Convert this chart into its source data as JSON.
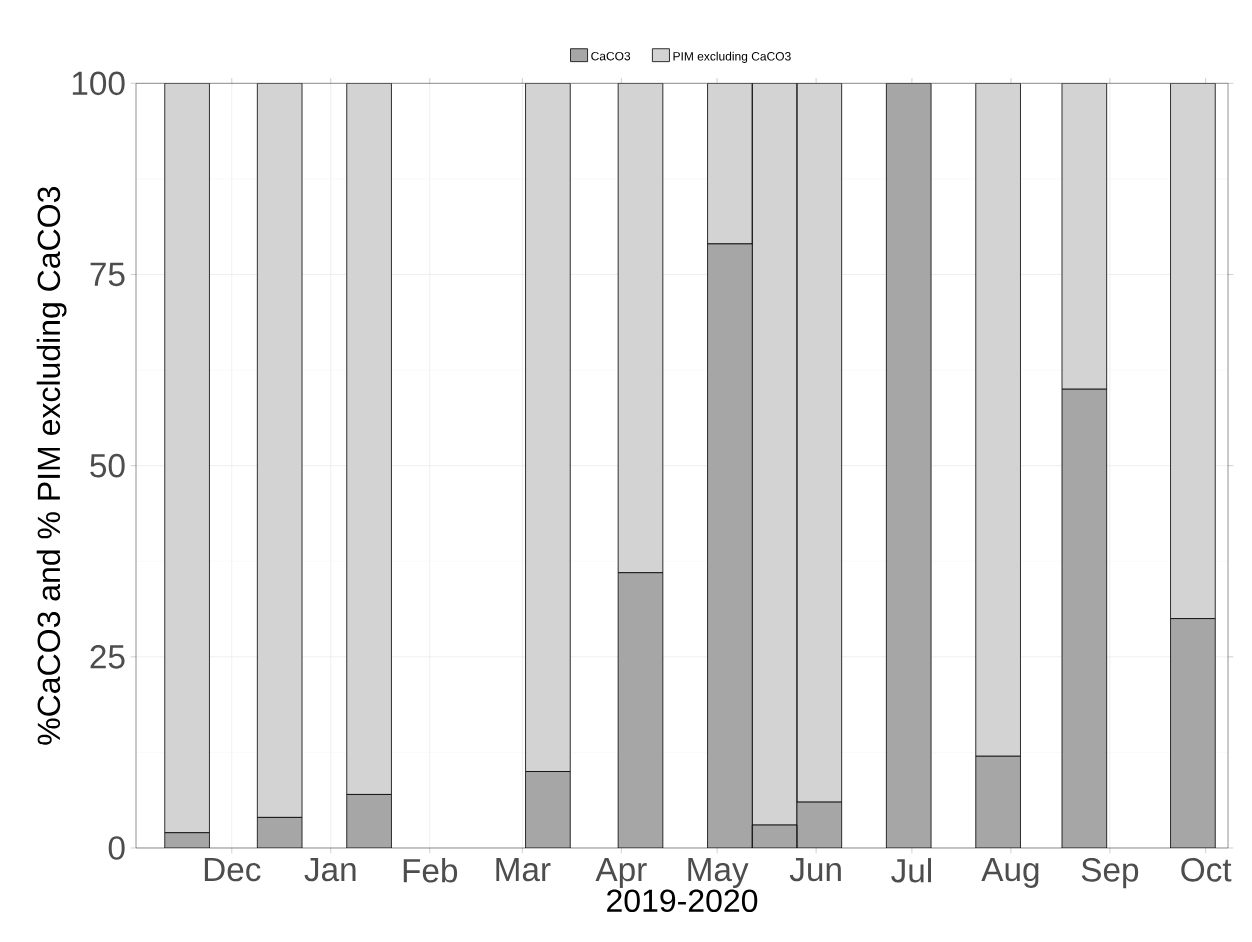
{
  "chart_data": {
    "type": "bar",
    "stacked": true,
    "xlabel": "2019-2020",
    "ylabel": "%CaCO3 and % PIM excluding CaCO3",
    "x": [
      "2019-11-17",
      "2019-12-16",
      "2020-01-13",
      "2020-03-09",
      "2020-04-07",
      "2020-05-05",
      "2020-05-19",
      "2020-06-02",
      "2020-06-30",
      "2020-07-28",
      "2020-08-24",
      "2020-09-27"
    ],
    "series": [
      {
        "name": "CaCO3",
        "color": "#a6a6a6",
        "values": [
          2,
          4,
          7,
          10,
          36,
          79,
          3,
          6,
          100,
          12,
          60,
          30
        ]
      },
      {
        "name": "PIM excluding CaCO3",
        "color": "#d3d3d3",
        "values": [
          98,
          96,
          93,
          90,
          64,
          21,
          97,
          94,
          0,
          88,
          40,
          70
        ]
      }
    ],
    "xlim": [
      "2019-11-01",
      "2020-10-08"
    ],
    "xticks": [
      {
        "value": "2019-12-01",
        "label": "Dec"
      },
      {
        "value": "2020-01-01",
        "label": "Jan"
      },
      {
        "value": "2020-02-01",
        "label": "Feb"
      },
      {
        "value": "2020-03-01",
        "label": "Mar"
      },
      {
        "value": "2020-04-01",
        "label": "Apr"
      },
      {
        "value": "2020-05-01",
        "label": "May"
      },
      {
        "value": "2020-06-01",
        "label": "Jun"
      },
      {
        "value": "2020-07-01",
        "label": "Jul"
      },
      {
        "value": "2020-08-01",
        "label": "Aug"
      },
      {
        "value": "2020-09-01",
        "label": "Sep"
      },
      {
        "value": "2020-10-01",
        "label": "Oct"
      }
    ],
    "ylim": [
      0,
      100
    ],
    "yticks": [
      0,
      25,
      50,
      75,
      100
    ],
    "grid": true,
    "legend": "top"
  }
}
